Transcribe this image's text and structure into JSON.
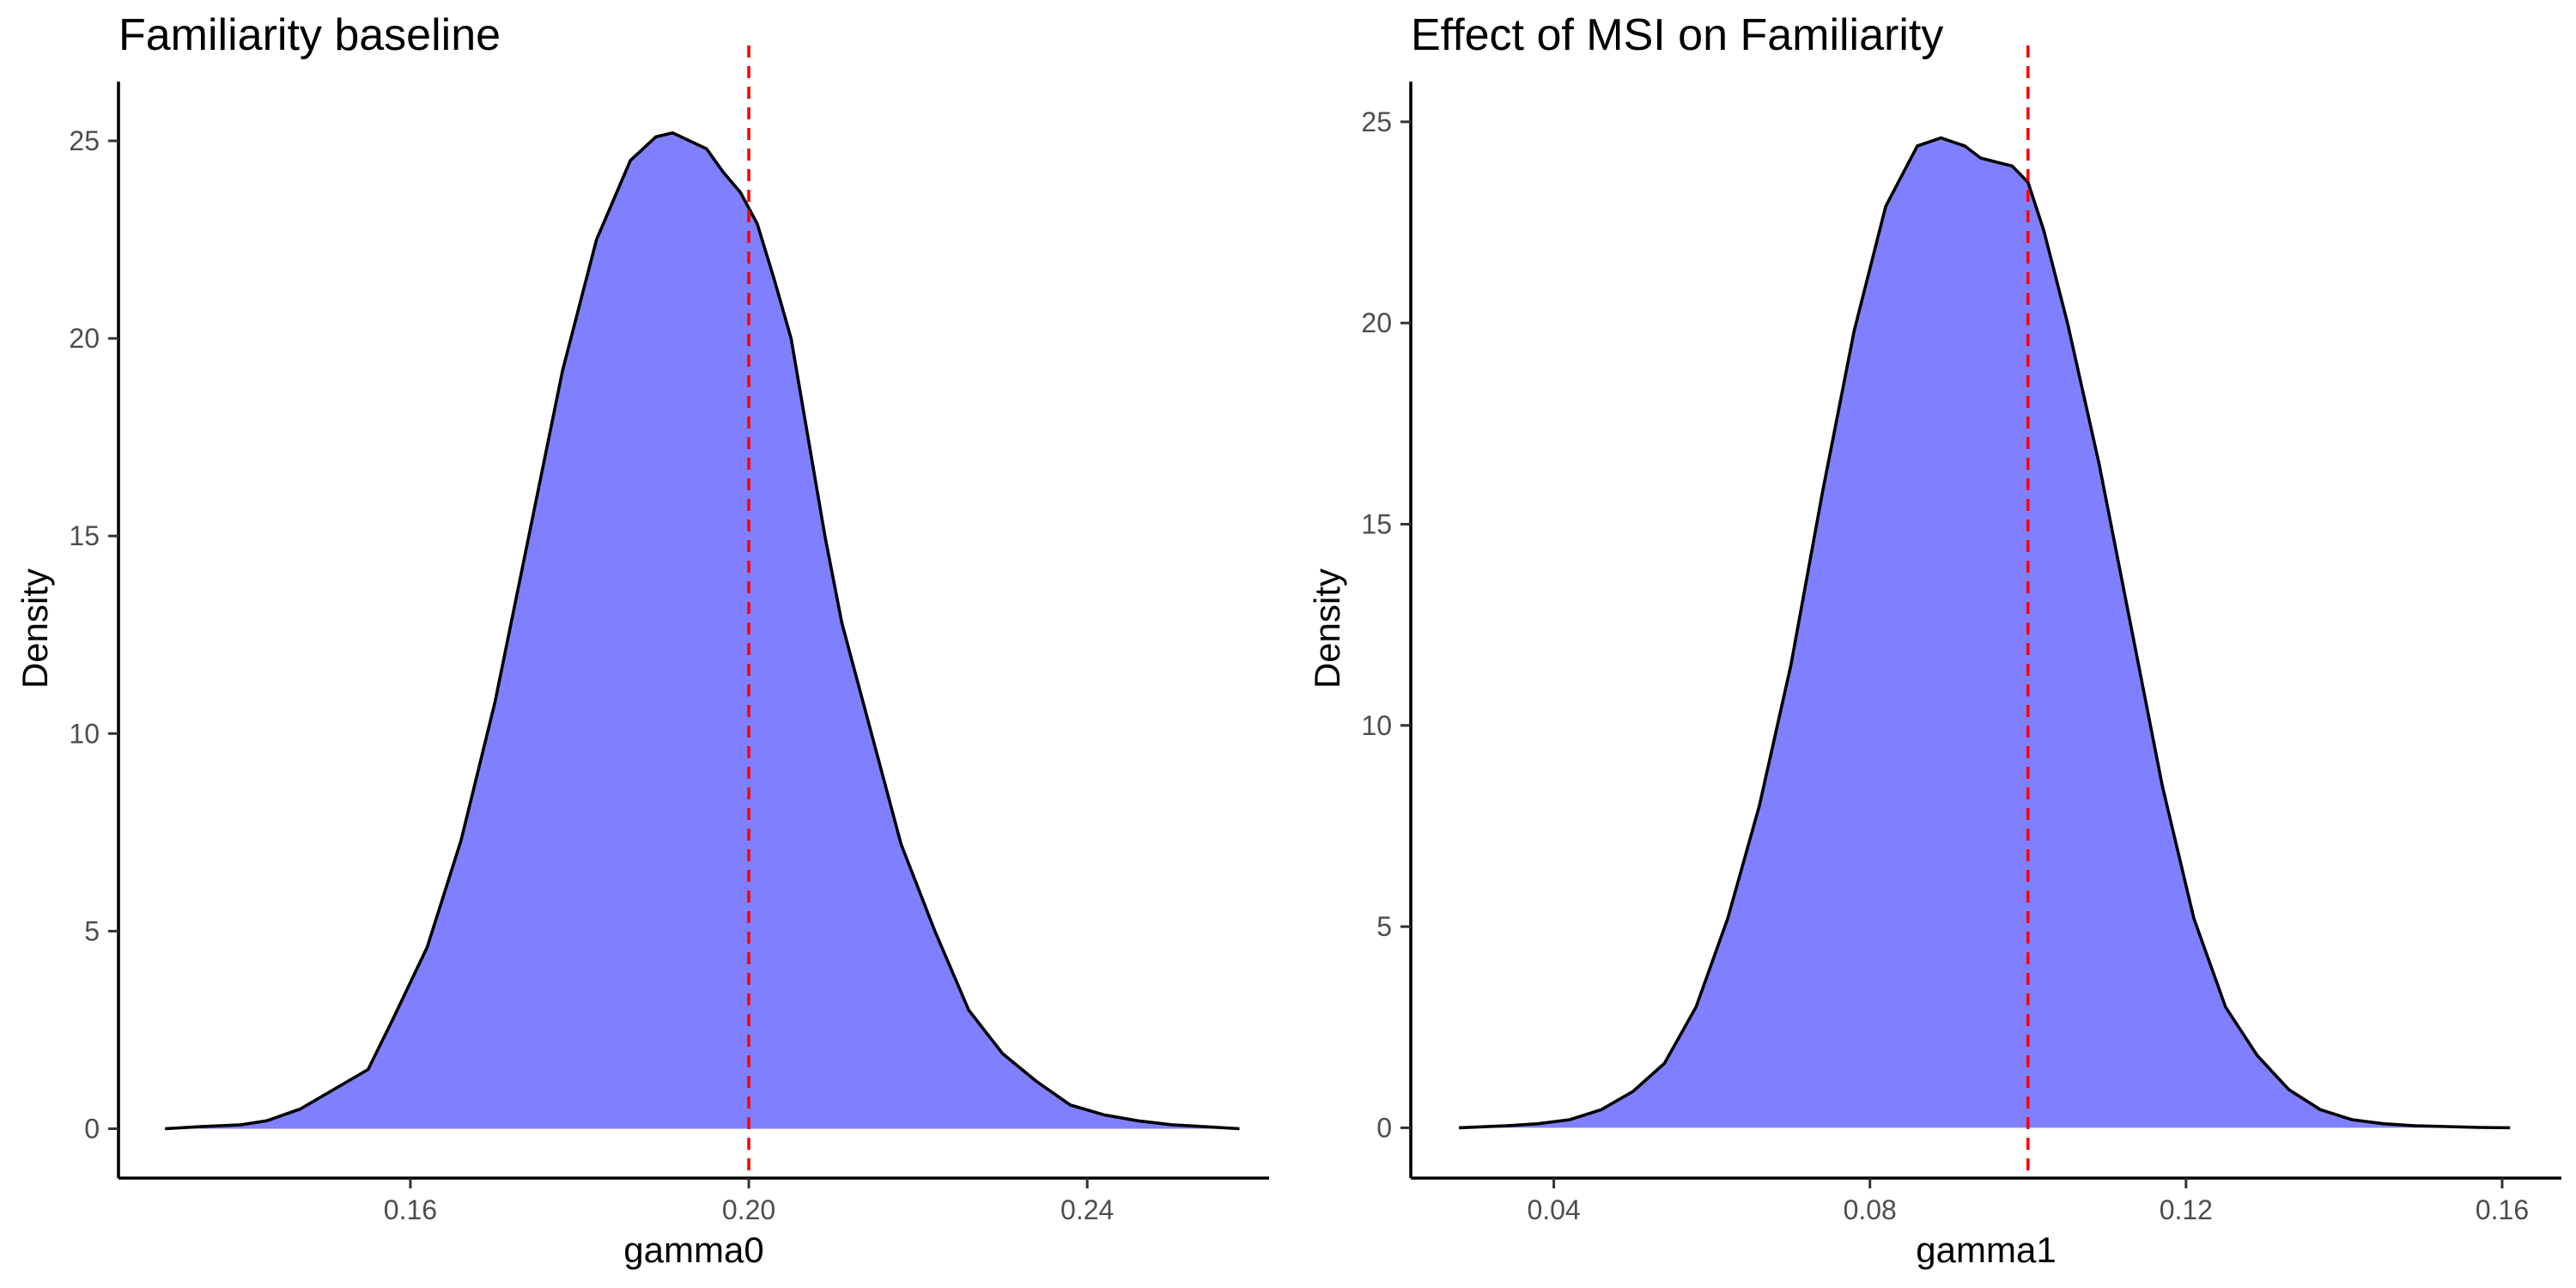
{
  "chart_data": [
    {
      "type": "area",
      "title": "Familiarity baseline",
      "xlabel": "gamma0",
      "ylabel": "Density",
      "xlim": [
        0.1255,
        0.2615
      ],
      "ylim": [
        -1.25,
        26.5
      ],
      "x_ticks": [
        0.16,
        0.2,
        0.24
      ],
      "x_tick_labels": [
        "0.16",
        "0.20",
        "0.24"
      ],
      "y_ticks": [
        0,
        5,
        10,
        15,
        20,
        25
      ],
      "y_tick_labels": [
        "0",
        "5",
        "10",
        "15",
        "20",
        "25"
      ],
      "reference_line": {
        "x": 0.2,
        "color": "#ff0000",
        "style": "dashed"
      },
      "fill_color": "#8080ff",
      "line_color": "#000000",
      "grid": false,
      "series": [
        {
          "x": [
            0.131,
            0.135,
            0.14,
            0.143,
            0.147,
            0.151,
            0.155,
            0.158,
            0.162,
            0.166,
            0.17,
            0.174,
            0.178,
            0.182,
            0.186,
            0.189,
            0.191,
            0.193,
            0.195,
            0.197,
            0.199,
            0.201,
            0.203,
            0.205,
            0.207,
            0.209,
            0.211,
            0.214,
            0.218,
            0.222,
            0.226,
            0.23,
            0.234,
            0.238,
            0.242,
            0.246,
            0.25,
            0.254,
            0.258
          ],
          "y": [
            0.0,
            0.05,
            0.1,
            0.2,
            0.5,
            1.0,
            1.5,
            2.8,
            4.6,
            7.3,
            10.8,
            15.0,
            19.2,
            22.5,
            24.5,
            25.1,
            25.2,
            25.0,
            24.8,
            24.2,
            23.7,
            22.9,
            21.5,
            20.0,
            17.5,
            15.0,
            12.8,
            10.4,
            7.2,
            5.0,
            3.0,
            1.9,
            1.2,
            0.6,
            0.35,
            0.2,
            0.1,
            0.05,
            0.0
          ]
        }
      ]
    },
    {
      "type": "area",
      "title": "Effect of MSI on Familiarity",
      "xlabel": "gamma1",
      "ylabel": "Density",
      "xlim": [
        0.0219,
        0.1675
      ],
      "ylim": [
        -1.25,
        26.0
      ],
      "x_ticks": [
        0.04,
        0.08,
        0.12,
        0.16
      ],
      "x_tick_labels": [
        "0.04",
        "0.08",
        "0.12",
        "0.16"
      ],
      "y_ticks": [
        0,
        5,
        10,
        15,
        20,
        25
      ],
      "y_tick_labels": [
        "0",
        "5",
        "10",
        "15",
        "20",
        "25"
      ],
      "reference_line": {
        "x": 0.1,
        "color": "#ff0000",
        "style": "dashed"
      },
      "fill_color": "#8080ff",
      "line_color": "#000000",
      "grid": false,
      "series": [
        {
          "x": [
            0.028,
            0.034,
            0.038,
            0.042,
            0.046,
            0.05,
            0.054,
            0.058,
            0.062,
            0.066,
            0.07,
            0.074,
            0.078,
            0.082,
            0.086,
            0.089,
            0.092,
            0.094,
            0.096,
            0.098,
            0.1,
            0.102,
            0.105,
            0.109,
            0.113,
            0.117,
            0.121,
            0.125,
            0.129,
            0.133,
            0.137,
            0.141,
            0.145,
            0.149,
            0.153,
            0.157,
            0.161
          ],
          "y": [
            0.0,
            0.05,
            0.1,
            0.2,
            0.45,
            0.9,
            1.6,
            3.0,
            5.2,
            8.0,
            11.5,
            15.8,
            19.8,
            22.9,
            24.4,
            24.6,
            24.4,
            24.1,
            24.0,
            23.9,
            23.5,
            22.3,
            20.0,
            16.5,
            12.5,
            8.5,
            5.2,
            3.0,
            1.8,
            0.95,
            0.45,
            0.2,
            0.1,
            0.05,
            0.03,
            0.01,
            0.0
          ]
        }
      ]
    }
  ]
}
